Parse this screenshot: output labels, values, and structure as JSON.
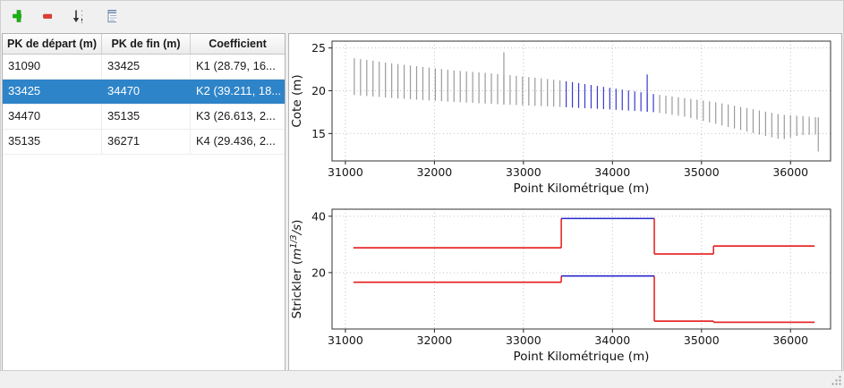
{
  "window": {
    "background": "#f0f0f0"
  },
  "toolbar": {
    "buttons": [
      {
        "name": "add",
        "icon": "plus-icon",
        "color": "#1cb215"
      },
      {
        "name": "remove",
        "icon": "minus-icon",
        "color": "#e23b32"
      },
      {
        "name": "sort",
        "icon": "sort-numeric-icon",
        "color": "#333333"
      },
      {
        "name": "report",
        "icon": "report-icon",
        "color": "#6c84a8"
      }
    ]
  },
  "table": {
    "selection_color": "#2e84c8",
    "columns": [
      "PK de départ (m)",
      "PK de fin (m)",
      "Coefficient"
    ],
    "rows": [
      {
        "cells": [
          "31090",
          "33425",
          "K1 (28.79, 16..."
        ],
        "selected": false
      },
      {
        "cells": [
          "33425",
          "34470",
          "K2 (39.211, 18..."
        ],
        "selected": true
      },
      {
        "cells": [
          "34470",
          "35135",
          "K3 (26.613, 2..."
        ],
        "selected": false
      },
      {
        "cells": [
          "35135",
          "36271",
          "K4 (29.436, 2..."
        ],
        "selected": false
      }
    ]
  },
  "chart_data": [
    {
      "type": "bar",
      "subtype": "vertical-range-bars",
      "title": "",
      "xlabel": "Point Kilométrique (m)",
      "ylabel": "Cote (m)",
      "xlim": [
        30850,
        36450
      ],
      "ylim": [
        11.8,
        25.8
      ],
      "xticks": [
        31000,
        32000,
        33000,
        34000,
        35000,
        36000
      ],
      "yticks": [
        15,
        20,
        25
      ],
      "grid": "dotted",
      "bar_spacing": 70,
      "x_start": 31100,
      "x_end": 36310,
      "highlight_range": [
        33425,
        34470
      ],
      "top_profile": [
        [
          31100,
          23.8
        ],
        [
          31600,
          23.1
        ],
        [
          32200,
          22.4
        ],
        [
          32780,
          21.9
        ],
        [
          33425,
          21.2
        ],
        [
          34000,
          20.3
        ],
        [
          34470,
          19.6
        ],
        [
          35135,
          18.7
        ],
        [
          35600,
          17.8
        ],
        [
          35900,
          17.2
        ],
        [
          36310,
          16.9
        ]
      ],
      "bottom_profile": [
        [
          31100,
          19.5
        ],
        [
          31600,
          19.1
        ],
        [
          32200,
          18.7
        ],
        [
          32780,
          18.4
        ],
        [
          33425,
          18.1
        ],
        [
          34000,
          17.8
        ],
        [
          34470,
          17.5
        ],
        [
          34800,
          17.0
        ],
        [
          35135,
          16.2
        ],
        [
          35600,
          15.0
        ],
        [
          35900,
          14.3
        ],
        [
          36100,
          14.8
        ],
        [
          36310,
          14.9
        ]
      ],
      "spikes": [
        {
          "x": 32780,
          "y_top": 24.5
        },
        {
          "x": 34390,
          "y_top": 21.9
        },
        {
          "x": 36312,
          "y_bottom": 12.9
        }
      ],
      "colors": {
        "bar": "#9b9b9b",
        "highlight": "#3939d0"
      }
    },
    {
      "type": "line",
      "subtype": "step",
      "title": "",
      "xlabel": "Point Kilométrique (m)",
      "ylabel": "Strickler (m^{1/3}/s)",
      "ylabel_rich": [
        {
          "t": "Strickler ("
        },
        {
          "t": "m",
          "i": true
        },
        {
          "t": "1/3",
          "i": true,
          "sup": true
        },
        {
          "t": "/s",
          "i": true
        },
        {
          "t": ")"
        }
      ],
      "xlim": [
        30850,
        36450
      ],
      "ylim": [
        0,
        42.5
      ],
      "xticks": [
        31000,
        32000,
        33000,
        34000,
        35000,
        36000
      ],
      "yticks": [
        20,
        40
      ],
      "grid": "dotted",
      "series": [
        {
          "name": "strickler-majeur",
          "segments": [
            {
              "x0": 31090,
              "x1": 33425,
              "y": 28.79,
              "color": "red"
            },
            {
              "x0": 33425,
              "x1": 34470,
              "y": 39.211,
              "color": "blue"
            },
            {
              "x0": 34470,
              "x1": 35135,
              "y": 26.613,
              "color": "red"
            },
            {
              "x0": 35135,
              "x1": 36271,
              "y": 29.436,
              "color": "red"
            }
          ]
        },
        {
          "name": "strickler-mineur",
          "segments": [
            {
              "x0": 31090,
              "x1": 33425,
              "y": 16.6,
              "color": "red"
            },
            {
              "x0": 33425,
              "x1": 34470,
              "y": 18.8,
              "color": "blue"
            },
            {
              "x0": 34470,
              "x1": 35135,
              "y": 2.8,
              "color": "red"
            },
            {
              "x0": 35135,
              "x1": 36271,
              "y": 2.4,
              "color": "red"
            }
          ]
        }
      ],
      "colors": {
        "red": "#e51a1a",
        "blue": "#2727cf"
      }
    }
  ]
}
